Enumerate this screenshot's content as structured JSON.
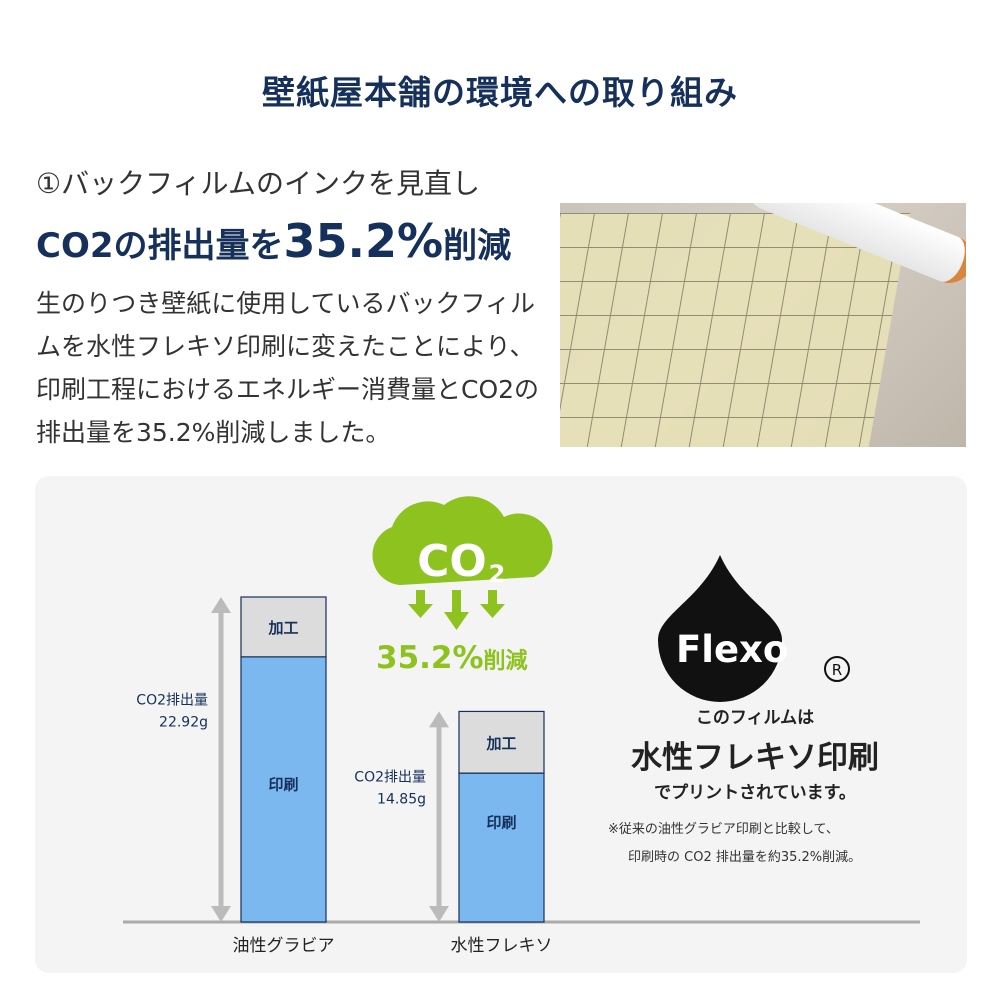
{
  "title": "壁紙屋本舗の環境への取り組み",
  "section": {
    "heading": "①バックフィルムのインクを見直し",
    "headline_prefix": "CO2の排出量を",
    "headline_value": "35.2%",
    "headline_suffix": "削減",
    "body": "生のりつき壁紙に使用しているバックフィルムを水性フレキソ印刷に変えたことにより、印刷工程におけるエネルギー消費量とCO2の排出量を35.2%削減しました。"
  },
  "badge": {
    "cloud_text": "CO",
    "cloud_sub": "2",
    "reduction_value": "35.2%",
    "reduction_label": "削減"
  },
  "logo": {
    "text": "Flexo",
    "registered": "®"
  },
  "right_text": {
    "line1": "このフィルムは",
    "line2": "水性フレキソ印刷",
    "line3": "でプリントされています。",
    "note1": "※従来の油性グラビア印刷と比較して、",
    "note2": "印刷時の CO2 排出量を約35.2%削減。"
  },
  "colors": {
    "navy": "#15305a",
    "green": "#8dc21f",
    "bar_print": "#7cb8f0",
    "bar_process": "#dcdcdc",
    "axis": "#aaaaaa"
  },
  "chart_data": {
    "type": "bar",
    "stacked": true,
    "categories": [
      "油性グラビア",
      "水性フレキソ"
    ],
    "series": [
      {
        "name": "印刷",
        "values": [
          18.7,
          10.5
        ]
      },
      {
        "name": "加工",
        "values": [
          4.22,
          4.35
        ]
      }
    ],
    "totals": [
      22.92,
      14.85
    ],
    "total_labels": [
      {
        "label": "CO2排出量",
        "value": "22.92g"
      },
      {
        "label": "CO2排出量",
        "value": "14.85g"
      }
    ],
    "ylim": [
      0,
      22.92
    ]
  }
}
